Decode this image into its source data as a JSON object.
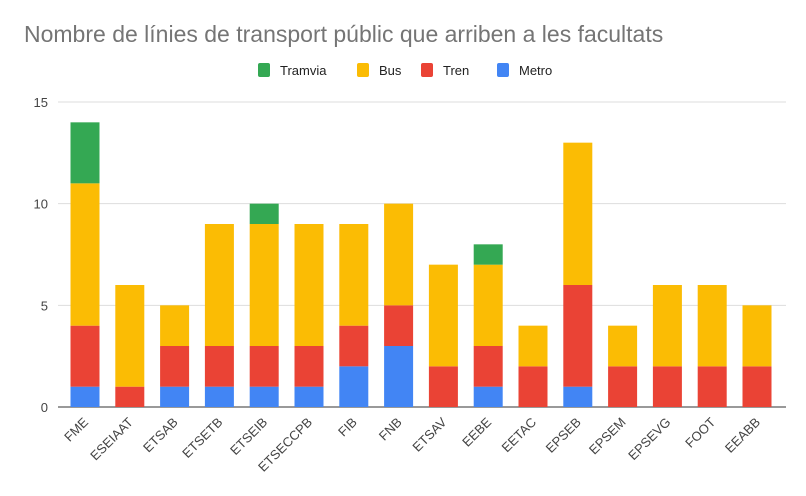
{
  "chart_data": {
    "type": "bar",
    "stacked": true,
    "title": "Nombre de línies de transport públic que arriben a les facultats",
    "xlabel": "",
    "ylabel": "",
    "ylim": [
      0,
      15
    ],
    "yticks": [
      0,
      5,
      10,
      15
    ],
    "grid": true,
    "legend_position": "top",
    "categories": [
      "FME",
      "ESEIAAT",
      "ETSAB",
      "ETSETB",
      "ETSEIB",
      "ETSECCPB",
      "FIB",
      "FNB",
      "ETSAV",
      "EEBE",
      "EETAC",
      "EPSEB",
      "EPSEM",
      "EPSEVG",
      "FOOT",
      "EEABB"
    ],
    "series": [
      {
        "name": "Metro",
        "color": "#4285f4",
        "values": [
          1,
          0,
          1,
          1,
          1,
          1,
          2,
          3,
          0,
          1,
          0,
          1,
          0,
          0,
          0,
          0
        ]
      },
      {
        "name": "Tren",
        "color": "#ea4335",
        "values": [
          3,
          1,
          2,
          2,
          2,
          2,
          2,
          2,
          2,
          2,
          2,
          5,
          2,
          2,
          2,
          2
        ]
      },
      {
        "name": "Bus",
        "color": "#fbbc04",
        "values": [
          7,
          5,
          2,
          6,
          6,
          6,
          5,
          5,
          5,
          4,
          2,
          7,
          2,
          4,
          4,
          3
        ]
      },
      {
        "name": "Tramvia",
        "color": "#34a853",
        "values": [
          3,
          0,
          0,
          0,
          1,
          0,
          0,
          0,
          0,
          1,
          0,
          0,
          0,
          0,
          0,
          0
        ]
      }
    ],
    "legend_order": [
      "Tramvia",
      "Bus",
      "Tren",
      "Metro"
    ]
  }
}
